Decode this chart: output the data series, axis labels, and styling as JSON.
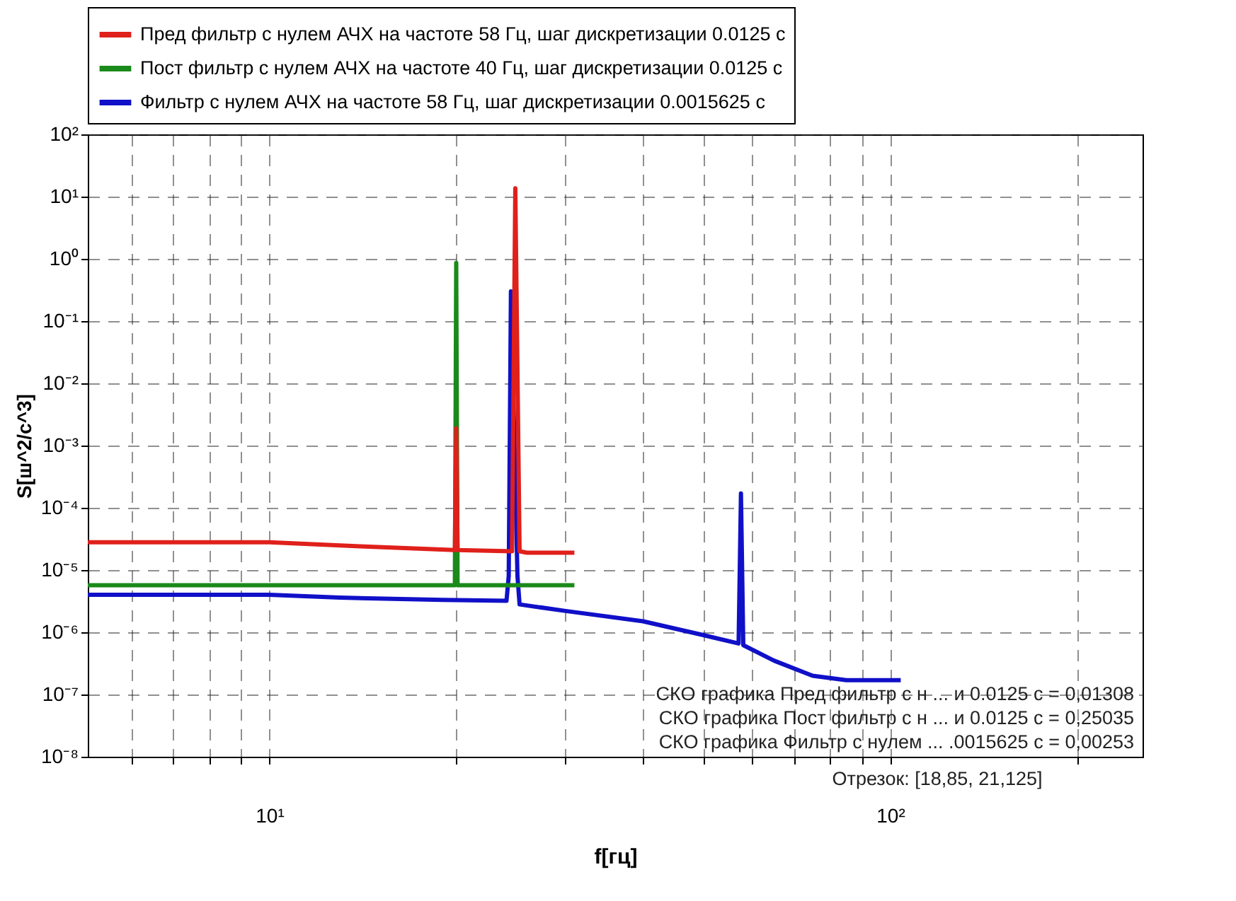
{
  "chart_data": {
    "type": "line",
    "xlabel": "f[гц]",
    "ylabel": "S[ш^2/с^3]",
    "log": "xy",
    "grid": true,
    "legend": "top",
    "marker": "none",
    "line_style": "solid",
    "xlim": [
      5.1,
      255
    ],
    "ylim": [
      1e-08,
      100
    ],
    "xticks": [
      {
        "value": 6,
        "label": null
      },
      {
        "value": 7,
        "label": null
      },
      {
        "value": 8,
        "label": null
      },
      {
        "value": 9,
        "label": null
      },
      {
        "value": 10,
        "label": "10¹"
      },
      {
        "value": 20,
        "label": null
      },
      {
        "value": 30,
        "label": null
      },
      {
        "value": 40,
        "label": null
      },
      {
        "value": 50,
        "label": null
      },
      {
        "value": 60,
        "label": null
      },
      {
        "value": 70,
        "label": null
      },
      {
        "value": 80,
        "label": null
      },
      {
        "value": 90,
        "label": null
      },
      {
        "value": 100,
        "label": "10²"
      },
      {
        "value": 200,
        "label": null
      }
    ],
    "yticks": [
      {
        "value": 1e-08,
        "label": "10⁻⁸"
      },
      {
        "value": 1e-07,
        "label": "10⁻⁷"
      },
      {
        "value": 1e-06,
        "label": "10⁻⁶"
      },
      {
        "value": 1e-05,
        "label": "10⁻⁵"
      },
      {
        "value": 0.0001,
        "label": "10⁻⁴"
      },
      {
        "value": 0.001,
        "label": "10⁻³"
      },
      {
        "value": 0.01,
        "label": "10⁻²"
      },
      {
        "value": 0.1,
        "label": "10⁻¹"
      },
      {
        "value": 1,
        "label": "10⁰"
      },
      {
        "value": 10,
        "label": "10¹"
      },
      {
        "value": 100,
        "label": "10²"
      }
    ],
    "series": [
      {
        "name": "Пред фильтр с нулем АЧХ на частоте 58 Гц, шаг дискретизации 0.0125 с",
        "color": "#e0201b",
        "x": [
          5.1,
          10,
          14,
          19.9,
          20,
          20.1,
          24.6,
          24.9,
          25.3,
          26,
          31
        ],
        "values": [
          2.8e-05,
          2.8e-05,
          2.4e-05,
          2.1e-05,
          0.0019,
          2.1e-05,
          2e-05,
          13.6,
          2e-05,
          1.9e-05,
          1.9e-05
        ]
      },
      {
        "name": "Пост фильтр с нулем АЧХ на частоте 40 Гц, шаг дискретизации 0.0125 с",
        "color": "#1a8a1a",
        "x": [
          5.1,
          19.9,
          20,
          20.1,
          31
        ],
        "values": [
          5.7e-06,
          5.7e-06,
          0.86,
          5.7e-06,
          5.7e-06
        ]
      },
      {
        "name": "Фильтр с нулем АЧХ на частоте 58 Гц, шаг дискретизации 0.0015625 с",
        "color": "#1010c8",
        "x": [
          5.1,
          10,
          13,
          19,
          24.1,
          24.3,
          24.5,
          25.1,
          25.3,
          30,
          40,
          50,
          57,
          57.5,
          58,
          65,
          75,
          85,
          104
        ],
        "values": [
          4e-06,
          4e-06,
          3.6e-06,
          3.3e-06,
          3.2e-06,
          8e-06,
          0.3,
          8e-06,
          2.8e-06,
          2.2e-06,
          1.5e-06,
          9e-07,
          6.6e-07,
          0.00017,
          6.2e-07,
          3.5e-07,
          2e-07,
          1.7e-07,
          1.7e-07
        ]
      }
    ],
    "annotations": [
      "СКО графика Пред фильтр с н ... и 0.0125 с = 0,01308",
      "СКО графика Пост фильтр с н ... и 0.0125 с = 0,25035",
      "СКО графика Фильтр с нулем  ... .0015625 с = 0,00253",
      "Отрезок: [18,85, 21,125]"
    ]
  }
}
